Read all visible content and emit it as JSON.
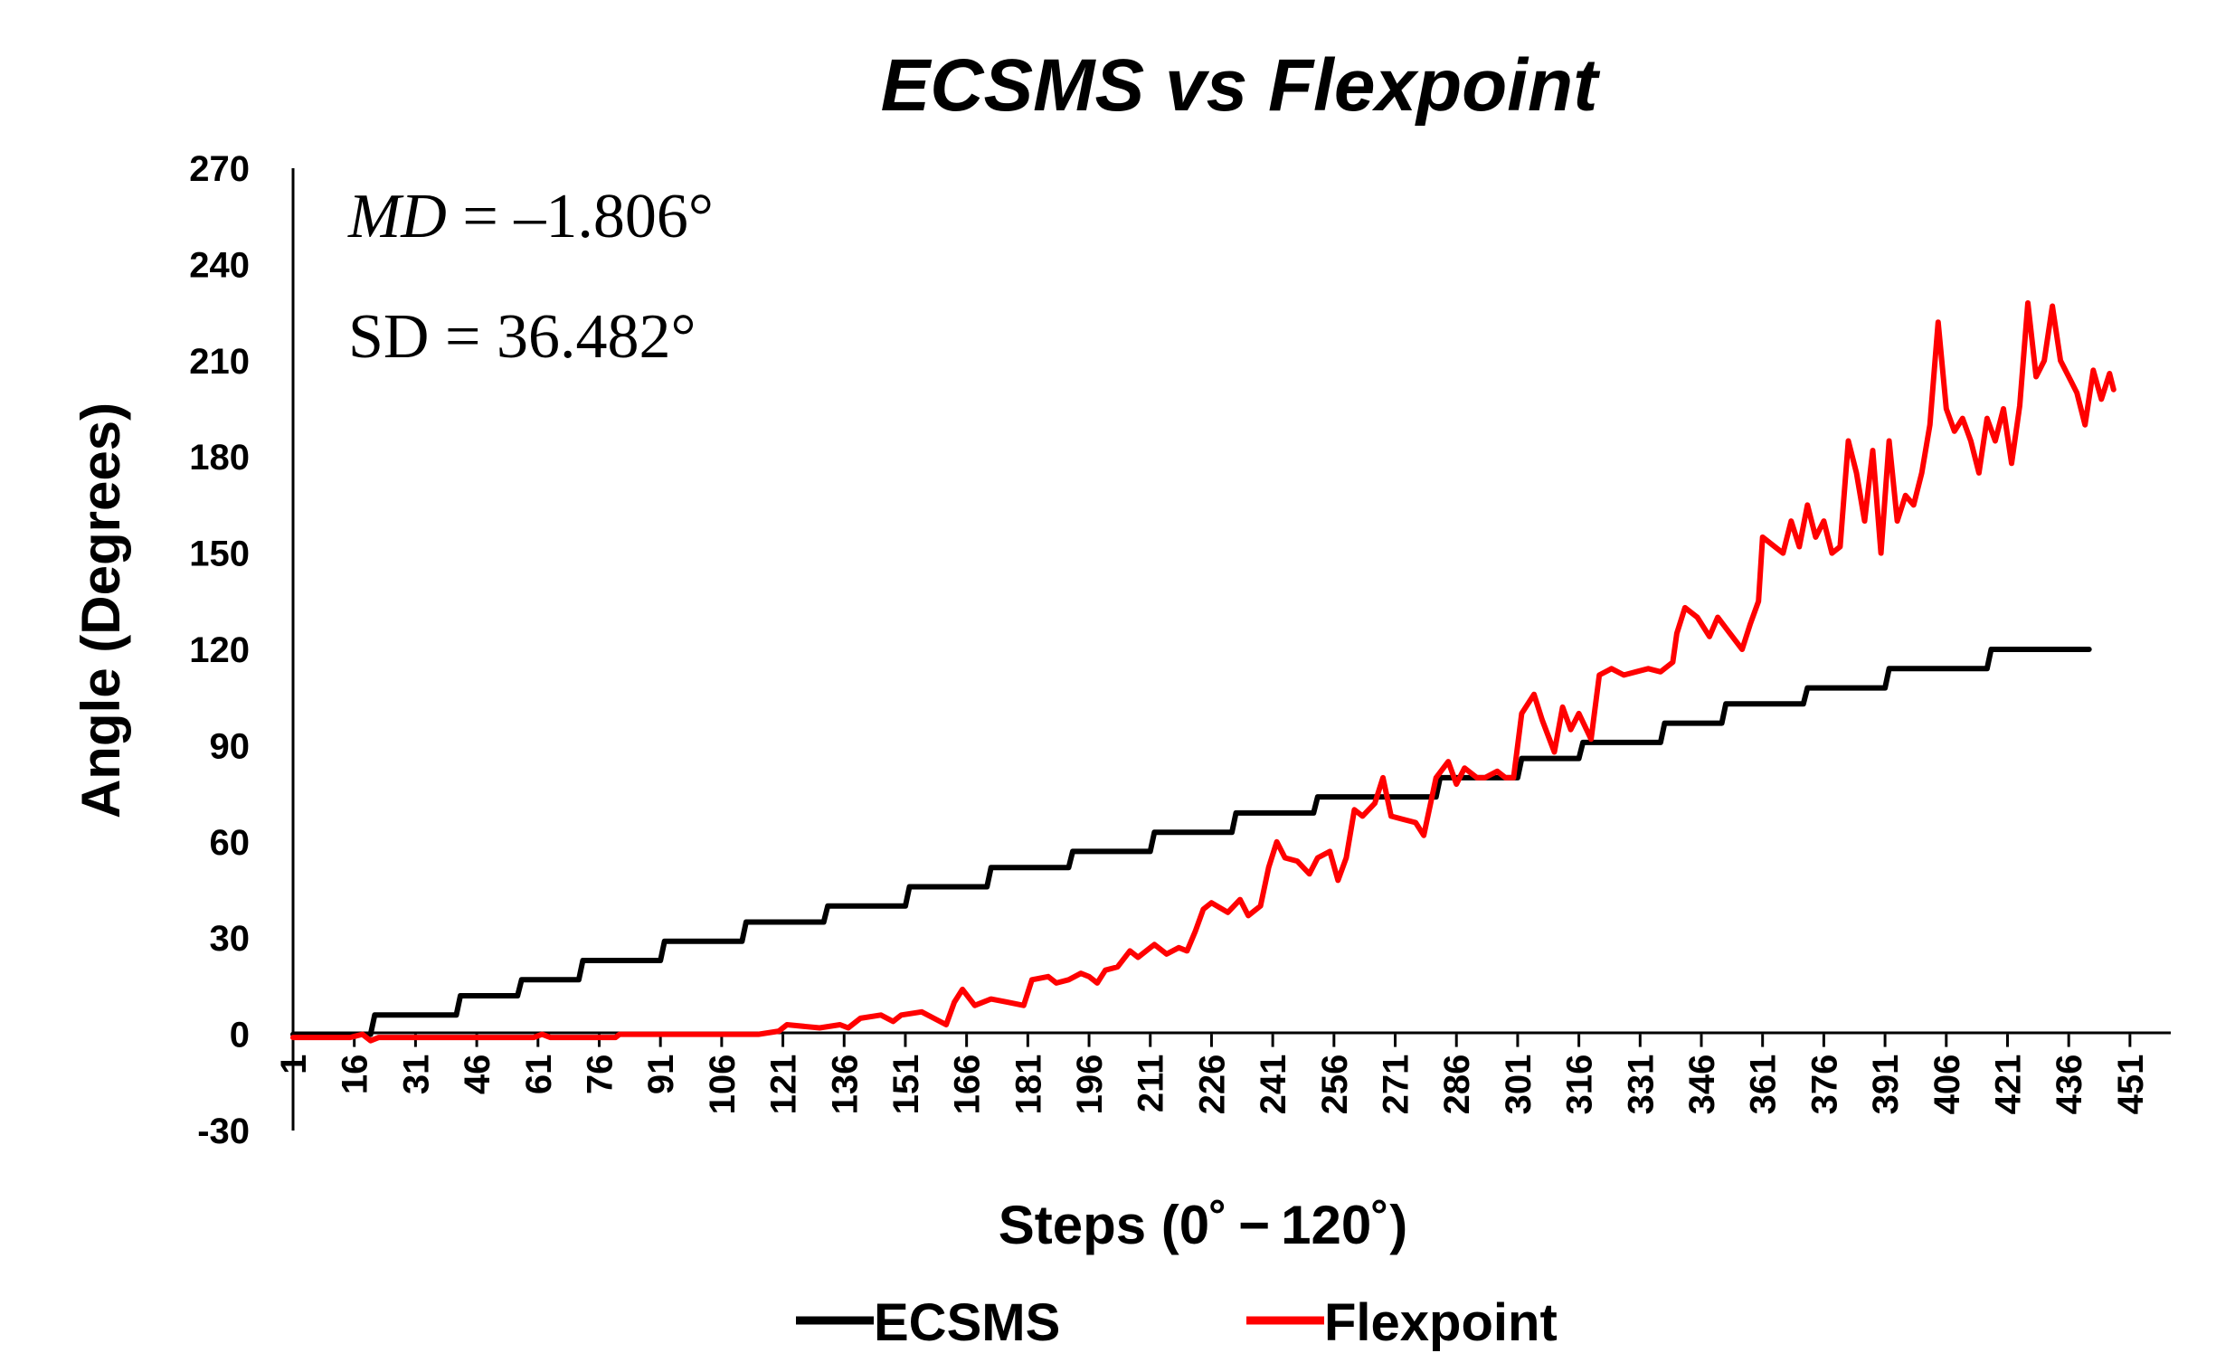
{
  "chart_data": {
    "type": "line",
    "title": "ECSMS vs Flexpoint",
    "xlabel": "Steps (0˚ − 120˚)",
    "ylabel": "Angle (Degrees)",
    "ylim": [
      -30,
      270
    ],
    "yticks": [
      -30,
      0,
      30,
      60,
      90,
      120,
      150,
      180,
      210,
      240,
      270
    ],
    "xlim": [
      1,
      461
    ],
    "xticks": [
      1,
      16,
      31,
      46,
      61,
      76,
      91,
      106,
      121,
      136,
      151,
      166,
      181,
      196,
      211,
      226,
      241,
      256,
      271,
      286,
      301,
      316,
      331,
      346,
      361,
      376,
      391,
      406,
      421,
      436,
      451
    ],
    "annotations": {
      "md_var": "MD",
      "md_value": " = –1.806°",
      "sd_text": "SD = 36.482°"
    },
    "legend": {
      "position": "bottom",
      "entries": [
        "ECSMS",
        "Flexpoint"
      ]
    },
    "series": [
      {
        "name": "ECSMS",
        "color": "#000000",
        "points": [
          [
            1,
            0
          ],
          [
            20,
            0
          ],
          [
            21,
            6
          ],
          [
            41,
            6
          ],
          [
            42,
            12
          ],
          [
            56,
            12
          ],
          [
            57,
            17
          ],
          [
            71,
            17
          ],
          [
            72,
            23
          ],
          [
            91,
            23
          ],
          [
            92,
            29
          ],
          [
            111,
            29
          ],
          [
            112,
            35
          ],
          [
            131,
            35
          ],
          [
            132,
            40
          ],
          [
            151,
            40
          ],
          [
            152,
            46
          ],
          [
            171,
            46
          ],
          [
            172,
            52
          ],
          [
            191,
            52
          ],
          [
            192,
            57
          ],
          [
            211,
            57
          ],
          [
            212,
            63
          ],
          [
            231,
            63
          ],
          [
            232,
            69
          ],
          [
            251,
            69
          ],
          [
            252,
            74
          ],
          [
            281,
            74
          ],
          [
            282,
            80
          ],
          [
            301,
            80
          ],
          [
            302,
            86
          ],
          [
            316,
            86
          ],
          [
            317,
            91
          ],
          [
            336,
            91
          ],
          [
            337,
            97
          ],
          [
            351,
            97
          ],
          [
            352,
            103
          ],
          [
            371,
            103
          ],
          [
            372,
            108
          ],
          [
            391,
            108
          ],
          [
            392,
            114
          ],
          [
            416,
            114
          ],
          [
            417,
            120
          ],
          [
            441,
            120
          ]
        ]
      },
      {
        "name": "Flexpoint",
        "color": "#ff0000",
        "points": [
          [
            1,
            -1
          ],
          [
            15,
            -1
          ],
          [
            18,
            0
          ],
          [
            20,
            -2
          ],
          [
            22,
            -1
          ],
          [
            30,
            -1
          ],
          [
            45,
            -1
          ],
          [
            60,
            -1
          ],
          [
            62,
            0
          ],
          [
            64,
            -1
          ],
          [
            80,
            -1
          ],
          [
            81,
            0
          ],
          [
            100,
            0
          ],
          [
            115,
            0
          ],
          [
            120,
            1
          ],
          [
            121,
            2
          ],
          [
            122,
            3
          ],
          [
            130,
            2
          ],
          [
            135,
            3
          ],
          [
            137,
            2
          ],
          [
            140,
            5
          ],
          [
            145,
            6
          ],
          [
            148,
            4
          ],
          [
            150,
            6
          ],
          [
            155,
            7
          ],
          [
            158,
            5
          ],
          [
            161,
            3
          ],
          [
            163,
            10
          ],
          [
            165,
            14
          ],
          [
            168,
            9
          ],
          [
            172,
            11
          ],
          [
            176,
            10
          ],
          [
            180,
            9
          ],
          [
            182,
            17
          ],
          [
            186,
            18
          ],
          [
            188,
            16
          ],
          [
            191,
            17
          ],
          [
            194,
            19
          ],
          [
            196,
            18
          ],
          [
            198,
            16
          ],
          [
            200,
            20
          ],
          [
            203,
            21
          ],
          [
            206,
            26
          ],
          [
            208,
            24
          ],
          [
            212,
            28
          ],
          [
            215,
            25
          ],
          [
            218,
            27
          ],
          [
            220,
            26
          ],
          [
            222,
            32
          ],
          [
            224,
            39
          ],
          [
            226,
            41
          ],
          [
            230,
            38
          ],
          [
            233,
            42
          ],
          [
            235,
            37
          ],
          [
            238,
            40
          ],
          [
            240,
            52
          ],
          [
            242,
            60
          ],
          [
            244,
            55
          ],
          [
            247,
            54
          ],
          [
            250,
            50
          ],
          [
            252,
            55
          ],
          [
            255,
            57
          ],
          [
            257,
            48
          ],
          [
            259,
            55
          ],
          [
            261,
            70
          ],
          [
            263,
            68
          ],
          [
            266,
            72
          ],
          [
            268,
            80
          ],
          [
            270,
            68
          ],
          [
            273,
            67
          ],
          [
            276,
            66
          ],
          [
            278,
            62
          ],
          [
            281,
            80
          ],
          [
            284,
            85
          ],
          [
            286,
            78
          ],
          [
            288,
            83
          ],
          [
            291,
            80
          ],
          [
            293,
            80
          ],
          [
            296,
            82
          ],
          [
            298,
            80
          ],
          [
            300,
            80
          ],
          [
            302,
            100
          ],
          [
            305,
            106
          ],
          [
            307,
            98
          ],
          [
            310,
            88
          ],
          [
            312,
            102
          ],
          [
            314,
            95
          ],
          [
            316,
            100
          ],
          [
            319,
            92
          ],
          [
            321,
            112
          ],
          [
            324,
            114
          ],
          [
            327,
            112
          ],
          [
            330,
            113
          ],
          [
            333,
            114
          ],
          [
            336,
            113
          ],
          [
            339,
            116
          ],
          [
            340,
            125
          ],
          [
            342,
            133
          ],
          [
            345,
            130
          ],
          [
            348,
            124
          ],
          [
            350,
            130
          ],
          [
            353,
            125
          ],
          [
            356,
            120
          ],
          [
            358,
            128
          ],
          [
            360,
            135
          ],
          [
            361,
            155
          ],
          [
            364,
            152
          ],
          [
            366,
            150
          ],
          [
            368,
            160
          ],
          [
            370,
            152
          ],
          [
            372,
            165
          ],
          [
            374,
            155
          ],
          [
            376,
            160
          ],
          [
            378,
            150
          ],
          [
            380,
            152
          ],
          [
            382,
            185
          ],
          [
            384,
            175
          ],
          [
            386,
            160
          ],
          [
            388,
            182
          ],
          [
            390,
            150
          ],
          [
            392,
            185
          ],
          [
            394,
            160
          ],
          [
            396,
            168
          ],
          [
            398,
            165
          ],
          [
            400,
            175
          ],
          [
            402,
            190
          ],
          [
            404,
            222
          ],
          [
            406,
            195
          ],
          [
            408,
            188
          ],
          [
            410,
            192
          ],
          [
            412,
            185
          ],
          [
            414,
            175
          ],
          [
            416,
            192
          ],
          [
            418,
            185
          ],
          [
            420,
            195
          ],
          [
            422,
            178
          ],
          [
            424,
            196
          ],
          [
            426,
            228
          ],
          [
            428,
            205
          ],
          [
            430,
            210
          ],
          [
            432,
            227
          ],
          [
            434,
            210
          ],
          [
            436,
            205
          ],
          [
            438,
            200
          ],
          [
            440,
            190
          ],
          [
            442,
            207
          ],
          [
            444,
            198
          ],
          [
            446,
            206
          ],
          [
            447,
            201
          ]
        ]
      }
    ]
  }
}
